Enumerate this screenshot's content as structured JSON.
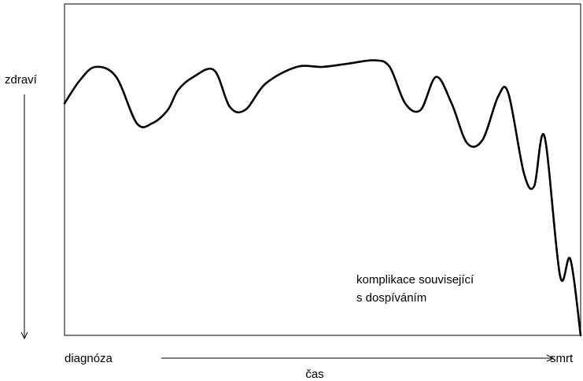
{
  "chart_data": {
    "type": "line",
    "title": "",
    "ylabel": "zdraví",
    "xlabel": "čas",
    "x_start_label": "diagnóza",
    "x_end_label": "smrt",
    "annotation": [
      "komplikace související",
      "s dospíváním"
    ],
    "ylim": [
      0,
      100
    ],
    "xlim": [
      0,
      100
    ],
    "grid": false,
    "series": [
      {
        "x": [
          0,
          3,
          6,
          10,
          14,
          17,
          20,
          22,
          25,
          29,
          32,
          35,
          39,
          45,
          50,
          55,
          60,
          63,
          66,
          69,
          72,
          75,
          78,
          81,
          84,
          86,
          89,
          91,
          93,
          96,
          98,
          100
        ],
        "y": [
          70,
          77,
          81,
          78,
          64,
          64,
          68,
          74,
          78,
          80,
          69,
          68,
          76,
          81,
          81,
          82,
          83,
          81,
          70,
          68,
          78,
          70,
          58,
          59,
          72,
          73,
          49,
          45,
          60,
          18,
          23,
          0
        ]
      }
    ]
  }
}
